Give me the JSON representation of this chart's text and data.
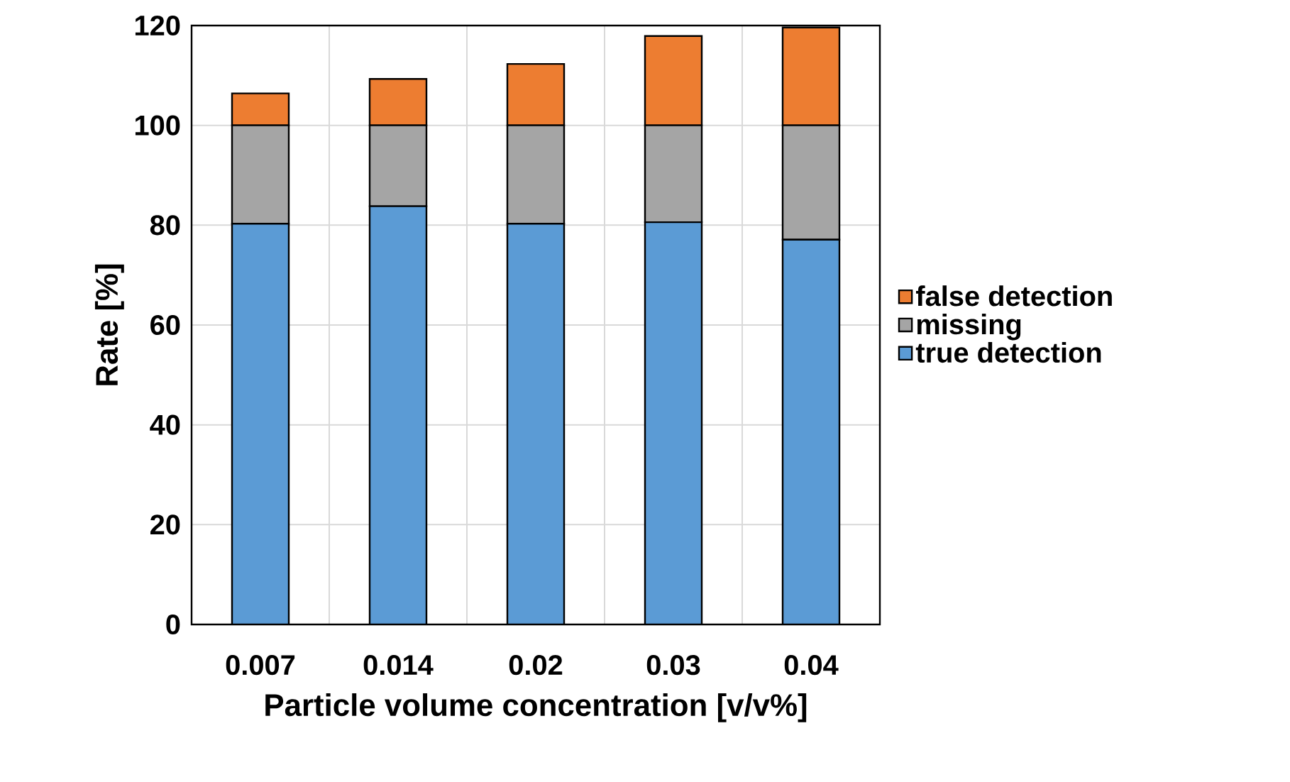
{
  "chart_data": {
    "type": "bar",
    "stacked": true,
    "xlabel": "Particle volume  concentration [v/v%]",
    "ylabel": "Rate [%]",
    "categories": [
      "0.007",
      "0.014",
      "0.02",
      "0.03",
      "0.04"
    ],
    "series": [
      {
        "name": "true detection",
        "color": "#5b9bd5",
        "values": [
          80.3,
          83.8,
          80.3,
          80.6,
          77.1
        ]
      },
      {
        "name": "missing",
        "color": "#a5a5a5",
        "values": [
          19.7,
          16.2,
          19.7,
          19.4,
          22.9
        ]
      },
      {
        "name": "false detection",
        "color": "#ed7d31",
        "values": [
          6.4,
          9.3,
          12.3,
          17.9,
          19.6
        ]
      }
    ],
    "ylim": [
      0,
      120
    ],
    "yticks": [
      0,
      20,
      40,
      60,
      80,
      100,
      120
    ],
    "grid": true,
    "legend": "right"
  }
}
